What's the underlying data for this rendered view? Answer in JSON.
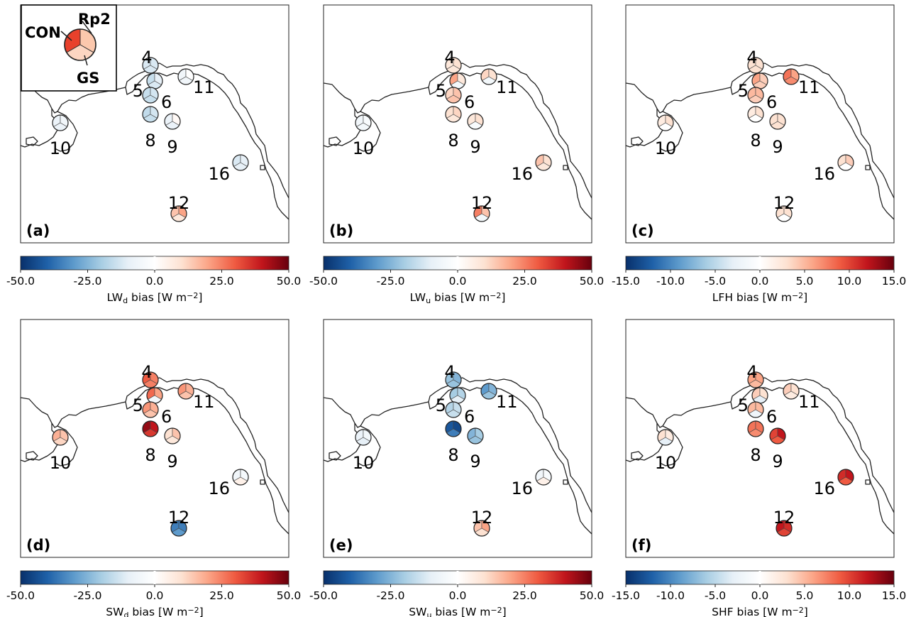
{
  "legend": {
    "con": "CON",
    "rp2": "Rp2",
    "gs": "GS",
    "con_color": "#e8412c",
    "rp2_color": "#fcc8ad",
    "gs_color": "#fdd6c2"
  },
  "colormap": {
    "name": "RdBu_r",
    "stops": [
      "#08306b",
      "#1f61a8",
      "#5e9bcc",
      "#a7cde3",
      "#e7f0f7",
      "#ffffff",
      "#fde2d2",
      "#fba486",
      "#ef5a41",
      "#c1151c",
      "#67000d"
    ]
  },
  "chart_data": [
    {
      "panel_label": "(a)",
      "cbar_label_main": "LW",
      "cbar_label_sub": "d",
      "cbar_label_rest": " bias [W m",
      "cbar_label_exp": "−2",
      "cbar_label_end": "]",
      "vmin": -50,
      "vmax": 50,
      "ticks": [
        "-50.0",
        "-25.0",
        "0.0",
        "25.0",
        "50.0"
      ],
      "stations": [
        {
          "id": "4",
          "values": [
            -12,
            -12,
            -12
          ]
        },
        {
          "id": "5",
          "values": [
            -15,
            -10,
            -12
          ]
        },
        {
          "id": "6",
          "values": [
            -15,
            -13,
            -15
          ]
        },
        {
          "id": "8",
          "values": [
            -16,
            -13,
            -15
          ]
        },
        {
          "id": "9",
          "values": [
            -8,
            2,
            -8
          ]
        },
        {
          "id": "10",
          "values": [
            -8,
            -6,
            -8
          ]
        },
        {
          "id": "11",
          "values": [
            -6,
            0,
            -6
          ]
        },
        {
          "id": "12",
          "values": [
            15,
            20,
            8
          ]
        },
        {
          "id": "16",
          "values": [
            -12,
            -10,
            -10
          ]
        }
      ]
    },
    {
      "panel_label": "(b)",
      "cbar_label_main": "LW",
      "cbar_label_sub": "u",
      "cbar_label_rest": " bias [W m",
      "cbar_label_exp": "−2",
      "cbar_label_end": "]",
      "vmin": -50,
      "vmax": 50,
      "ticks": [
        "-50.0",
        "-25.0",
        "0.0",
        "25.0",
        "50.0"
      ],
      "stations": [
        {
          "id": "4",
          "values": [
            8,
            10,
            8
          ]
        },
        {
          "id": "5",
          "values": [
            20,
            8,
            -5
          ]
        },
        {
          "id": "6",
          "values": [
            12,
            15,
            15
          ]
        },
        {
          "id": "8",
          "values": [
            10,
            12,
            8
          ]
        },
        {
          "id": "9",
          "values": [
            8,
            10,
            -3
          ]
        },
        {
          "id": "10",
          "values": [
            -6,
            -3,
            -5
          ]
        },
        {
          "id": "11",
          "values": [
            12,
            10,
            -5
          ]
        },
        {
          "id": "12",
          "values": [
            25,
            15,
            -5
          ]
        },
        {
          "id": "16",
          "values": [
            15,
            10,
            8
          ]
        }
      ]
    },
    {
      "panel_label": "(c)",
      "cbar_label_main": "LFH bias [W m",
      "cbar_label_sub": "",
      "cbar_label_rest": "",
      "cbar_label_exp": "−2",
      "cbar_label_end": "]",
      "vmin": -15,
      "vmax": 15,
      "ticks": [
        "-15.0",
        "-10.0",
        "-5.0",
        "0.0",
        "5.0",
        "10.0",
        "15.0"
      ],
      "stations": [
        {
          "id": "4",
          "values": [
            3,
            3,
            3
          ]
        },
        {
          "id": "5",
          "values": [
            6,
            4,
            4
          ]
        },
        {
          "id": "6",
          "values": [
            5,
            5,
            4
          ]
        },
        {
          "id": "8",
          "values": [
            2,
            3,
            0
          ]
        },
        {
          "id": "9",
          "values": [
            3,
            3,
            3
          ]
        },
        {
          "id": "10",
          "values": [
            2,
            3,
            0
          ]
        },
        {
          "id": "11",
          "values": [
            8,
            6,
            7
          ]
        },
        {
          "id": "12",
          "values": [
            3,
            3,
            0
          ]
        },
        {
          "id": "16",
          "values": [
            3,
            4,
            0
          ]
        }
      ]
    },
    {
      "panel_label": "(d)",
      "cbar_label_main": "SW",
      "cbar_label_sub": "d",
      "cbar_label_rest": " bias [W m",
      "cbar_label_exp": "−2",
      "cbar_label_end": "]",
      "vmin": -50,
      "vmax": 50,
      "ticks": [
        "-50.0",
        "-25.0",
        "0.0",
        "25.0",
        "50.0"
      ],
      "stations": [
        {
          "id": "4",
          "values": [
            30,
            25,
            25
          ]
        },
        {
          "id": "5",
          "values": [
            28,
            20,
            -5
          ]
        },
        {
          "id": "6",
          "values": [
            22,
            18,
            15
          ]
        },
        {
          "id": "8",
          "values": [
            45,
            40,
            35
          ]
        },
        {
          "id": "9",
          "values": [
            10,
            15,
            8
          ]
        },
        {
          "id": "10",
          "values": [
            18,
            15,
            12
          ]
        },
        {
          "id": "11",
          "values": [
            22,
            18,
            15
          ]
        },
        {
          "id": "12",
          "values": [
            -35,
            -35,
            -30
          ]
        },
        {
          "id": "16",
          "values": [
            -6,
            -4,
            5
          ]
        }
      ]
    },
    {
      "panel_label": "(e)",
      "cbar_label_main": "SW",
      "cbar_label_sub": "u",
      "cbar_label_rest": " bias [W m",
      "cbar_label_exp": "−2",
      "cbar_label_end": "]",
      "vmin": -50,
      "vmax": 50,
      "ticks": [
        "-50.0",
        "-25.0",
        "0.0",
        "25.0",
        "50.0"
      ],
      "stations": [
        {
          "id": "4",
          "values": [
            -22,
            -25,
            -22
          ]
        },
        {
          "id": "5",
          "values": [
            -20,
            -18,
            -10
          ]
        },
        {
          "id": "6",
          "values": [
            -18,
            -15,
            -15
          ]
        },
        {
          "id": "8",
          "values": [
            -42,
            -45,
            -35
          ]
        },
        {
          "id": "9",
          "values": [
            -25,
            -20,
            -22
          ]
        },
        {
          "id": "10",
          "values": [
            -8,
            -5,
            -10
          ]
        },
        {
          "id": "11",
          "values": [
            -30,
            -25,
            -22
          ]
        },
        {
          "id": "12",
          "values": [
            15,
            20,
            10
          ]
        },
        {
          "id": "16",
          "values": [
            -6,
            -3,
            5
          ]
        }
      ]
    },
    {
      "panel_label": "(f)",
      "cbar_label_main": "SHF bias [W m",
      "cbar_label_sub": "",
      "cbar_label_rest": "",
      "cbar_label_exp": "−2",
      "cbar_label_end": "]",
      "vmin": -15,
      "vmax": 15,
      "ticks": [
        "-15.0",
        "-10.0",
        "-5.0",
        "0.0",
        "5.0",
        "10.0",
        "15.0"
      ],
      "stations": [
        {
          "id": "4",
          "values": [
            6,
            6,
            5
          ]
        },
        {
          "id": "5",
          "values": [
            4,
            3,
            -3
          ]
        },
        {
          "id": "6",
          "values": [
            5,
            5,
            -2
          ]
        },
        {
          "id": "8",
          "values": [
            8,
            8,
            7
          ]
        },
        {
          "id": "9",
          "values": [
            10,
            12,
            9
          ]
        },
        {
          "id": "10",
          "values": [
            3,
            2,
            -3
          ]
        },
        {
          "id": "11",
          "values": [
            4,
            3,
            2
          ]
        },
        {
          "id": "12",
          "values": [
            12,
            11,
            10
          ]
        },
        {
          "id": "16",
          "values": [
            11,
            12,
            9
          ]
        }
      ]
    }
  ]
}
